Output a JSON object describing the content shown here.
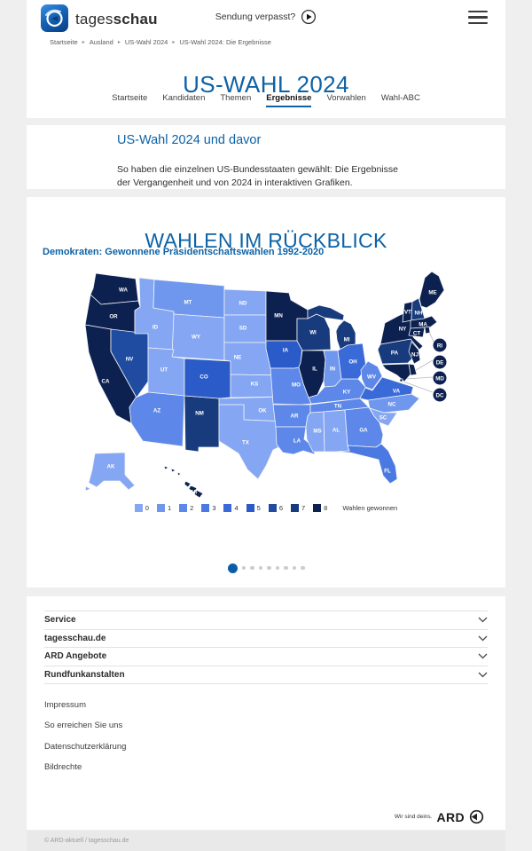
{
  "colors": {
    "accent": "#0D62A6",
    "page_bg": "#EFEFEF",
    "dot_active": "#0B5CA8",
    "dot_inactive": "#CCCCCC"
  },
  "header": {
    "brand_regular": "tages",
    "brand_bold": "schau",
    "broadcast_link": "Sendung verpasst?"
  },
  "breadcrumb": {
    "separator": "▸",
    "items": [
      "Startseite",
      "Ausland",
      "US-Wahl 2024",
      "US-Wahl 2024: Die Ergebnisse"
    ]
  },
  "page": {
    "title": "US-WAHL 2024"
  },
  "tabs": [
    {
      "label": "Startseite",
      "active": false
    },
    {
      "label": "Kandidaten",
      "active": false
    },
    {
      "label": "Themen",
      "active": false
    },
    {
      "label": "Ergebnisse",
      "active": true
    },
    {
      "label": "Vorwahlen",
      "active": false
    },
    {
      "label": "Wahl-ABC",
      "active": false
    }
  ],
  "teaser": {
    "title": "US-Wahl 2024 und davor",
    "text": "So haben die einzelnen US-Bundesstaaten gewählt: Die Ergebnisse der Vergangenheit und von 2024 in interaktiven Grafiken."
  },
  "chart": {
    "heading": "WAHLEN IM RÜCKBLICK",
    "legend_label": "Wahlen gewonnen",
    "carousel": {
      "count": 9,
      "active_index": 0
    }
  },
  "chart_data": {
    "type": "choropleth",
    "title": "Demokraten: Gewonnene Präsidentschaftswahlen 1992-2020",
    "unit": "Wahlen gewonnen",
    "scale": {
      "min": 0,
      "max": 8,
      "colors": [
        "#84A6F3",
        "#6F97EE",
        "#5D88E9",
        "#4B79E2",
        "#3A6AD8",
        "#2A5BC8",
        "#1F4BA0",
        "#173B7C",
        "#0D2150"
      ]
    },
    "states": {
      "WA": 8,
      "OR": 8,
      "CA": 8,
      "NV": 6,
      "ID": 0,
      "MT": 1,
      "WY": 0,
      "UT": 0,
      "AZ": 2,
      "NM": 7,
      "CO": 5,
      "ND": 0,
      "SD": 0,
      "NE": 0,
      "KS": 0,
      "OK": 0,
      "TX": 0,
      "MN": 8,
      "IA": 5,
      "MO": 2,
      "AR": 2,
      "LA": 2,
      "WI": 7,
      "IL": 8,
      "MS": 0,
      "MI": 7,
      "IN": 1,
      "KY": 2,
      "TN": 2,
      "AL": 0,
      "OH": 4,
      "WV": 2,
      "GA": 2,
      "FL": 3,
      "SC": 0,
      "NC": 1,
      "VA": 4,
      "PA": 7,
      "NY": 8,
      "NJ": 8,
      "VT": 8,
      "NH": 7,
      "MA": 8,
      "CT": 8,
      "RI": 8,
      "DE": 8,
      "MD": 8,
      "DC": 8,
      "ME": 8,
      "AK": 0,
      "HI": 8
    }
  },
  "footer": {
    "accordion": [
      {
        "label": "Service"
      },
      {
        "label": "tagesschau.de"
      },
      {
        "label": "ARD Angebote"
      },
      {
        "label": "Rundfunkanstalten"
      }
    ],
    "links": [
      "Impressum",
      "So erreichen Sie uns",
      "Datenschutzerklärung",
      "Bildrechte"
    ],
    "ard_claim": "Wir sind deins.",
    "ard_brand": "ARD",
    "copyright": "© ARD-aktuell / tagesschau.de"
  }
}
